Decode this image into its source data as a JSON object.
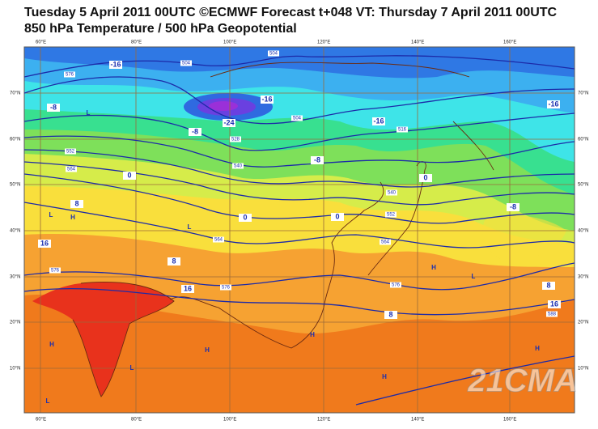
{
  "header": {
    "line1": "Tuesday 5 April 2011 00UTC ©ECMWF Forecast t+048 VT: Thursday 7 April 2011 00UTC",
    "line2": "850 hPa Temperature / 500 hPa Geopotential"
  },
  "map": {
    "lon_labels": [
      "60°E",
      "80°E",
      "100°E",
      "120°E",
      "140°E",
      "160°E"
    ],
    "lat_labels": [
      "70°N",
      "60°N",
      "50°N",
      "40°N",
      "30°N",
      "20°N",
      "10°N"
    ],
    "temperature_labels": [
      "-16",
      "-8",
      "-16",
      "-24",
      "-16",
      "-16",
      "-8",
      "-8",
      "0",
      "8",
      "0",
      "0",
      "16",
      "8",
      "16",
      "8",
      "8",
      "16",
      "0",
      "-8"
    ],
    "geopotential_labels": [
      "504",
      "504",
      "576",
      "504",
      "516",
      "528",
      "540",
      "552",
      "564",
      "564",
      "576",
      "576",
      "576",
      "588",
      "564",
      "552",
      "540"
    ],
    "pressure_centres": [
      "L",
      "L",
      "H",
      "L",
      "H",
      "L",
      "H",
      "H",
      "H",
      "H",
      "L",
      "H",
      "L"
    ],
    "watermark": "21CMA"
  }
}
